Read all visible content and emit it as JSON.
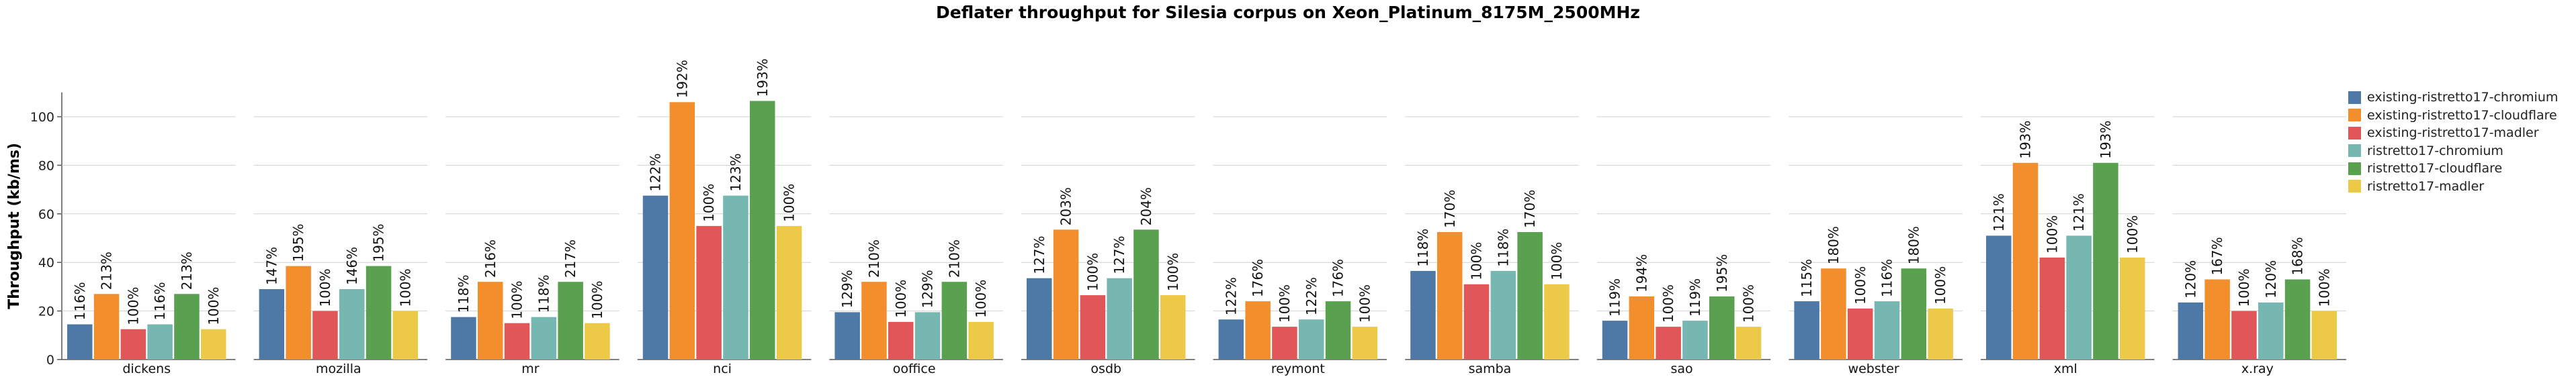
{
  "chart_data": {
    "type": "bar",
    "title": "Deflater throughput for Silesia corpus on Xeon_Platinum_8175M_2500MHz",
    "xlabel": "",
    "ylabel": "Throughput (kb/ms)",
    "ylim": [
      0,
      110
    ],
    "yticks": [
      "0",
      "20",
      "40",
      "60",
      "80",
      "100"
    ],
    "grid": true,
    "legend_position": "right",
    "categories": [
      "dickens",
      "mozilla",
      "mr",
      "nci",
      "ooffice",
      "osdb",
      "reymont",
      "samba",
      "sao",
      "webster",
      "xml",
      "x.ray"
    ],
    "series": [
      {
        "name": "existing-ristretto17-chromium",
        "color": "#4e79a7",
        "values": [
          14.5,
          29,
          17.5,
          67.5,
          19.5,
          33.5,
          16.5,
          36.5,
          16,
          24,
          51,
          23.5
        ],
        "labels": [
          "116%",
          "147%",
          "118%",
          "122%",
          "129%",
          "127%",
          "122%",
          "118%",
          "119%",
          "115%",
          "121%",
          "120%"
        ]
      },
      {
        "name": "existing-ristretto17-cloudflare",
        "color": "#f28e2b",
        "values": [
          27,
          38.5,
          32,
          106,
          32,
          53.5,
          24,
          52.5,
          26,
          37.5,
          81,
          33
        ],
        "labels": [
          "213%",
          "195%",
          "216%",
          "192%",
          "210%",
          "203%",
          "176%",
          "170%",
          "194%",
          "180%",
          "193%",
          "167%"
        ]
      },
      {
        "name": "existing-ristretto17-madler",
        "color": "#e15759",
        "values": [
          12.5,
          20,
          15,
          55,
          15.5,
          26.5,
          13.5,
          31,
          13.5,
          21,
          42,
          20
        ],
        "labels": [
          "100%",
          "100%",
          "100%",
          "100%",
          "100%",
          "100%",
          "100%",
          "100%",
          "100%",
          "100%",
          "100%",
          "100%"
        ]
      },
      {
        "name": "ristretto17-chromium",
        "color": "#76b7b2",
        "values": [
          14.5,
          29,
          17.5,
          67.5,
          19.5,
          33.5,
          16.5,
          36.5,
          16,
          24,
          51,
          23.5
        ],
        "labels": [
          "116%",
          "146%",
          "118%",
          "123%",
          "129%",
          "127%",
          "122%",
          "118%",
          "119%",
          "116%",
          "121%",
          "120%"
        ]
      },
      {
        "name": "ristretto17-cloudflare",
        "color": "#59a14f",
        "values": [
          27,
          38.5,
          32,
          106.5,
          32,
          53.5,
          24,
          52.5,
          26,
          37.5,
          81,
          33
        ],
        "labels": [
          "213%",
          "195%",
          "217%",
          "193%",
          "210%",
          "204%",
          "176%",
          "170%",
          "195%",
          "180%",
          "193%",
          "168%"
        ]
      },
      {
        "name": "ristretto17-madler",
        "color": "#edc948",
        "values": [
          12.5,
          20,
          15,
          55,
          15.5,
          26.5,
          13.5,
          31,
          13.5,
          21,
          42,
          20
        ],
        "labels": [
          "100%",
          "100%",
          "100%",
          "100%",
          "100%",
          "100%",
          "100%",
          "100%",
          "100%",
          "100%",
          "100%",
          "100%"
        ]
      }
    ]
  }
}
